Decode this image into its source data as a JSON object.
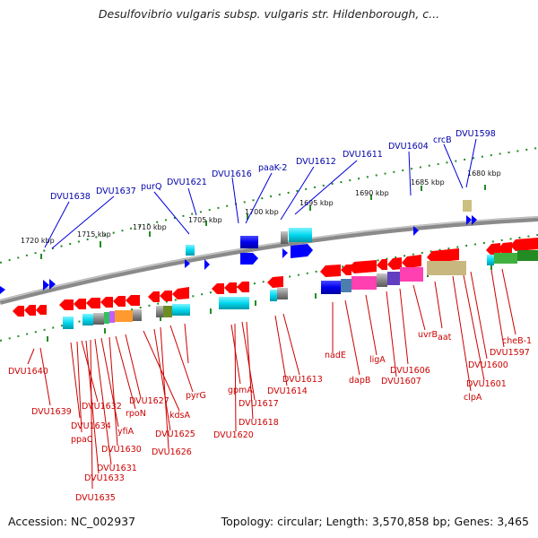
{
  "title": "Desulfovibrio vulgaris subsp. vulgaris str. Hildenborough, c...",
  "footer": {
    "accession": "Accession: NC_002937",
    "topology": "Topology: circular; Length: 3,570,858 bp; Genes: 3,465"
  },
  "colors": {
    "forward_strand_label": "#0000aa",
    "reverse_strand_label": "#cc0000",
    "forward_gene": "#0000ff",
    "reverse_gene": "#ff0000",
    "backbone": "#808080",
    "tick": "#228b22"
  },
  "scale_labels": [
    "1720 kbp",
    "1715 kbp",
    "1710 kbp",
    "1705 kbp",
    "1700 kbp",
    "1695 kbp",
    "1690 kbp",
    "1685 kbp",
    "1680 kbp"
  ],
  "top_labels": [
    "DVU1638",
    "DVU1637",
    "purQ",
    "DVU1621",
    "DVU1616",
    "paaK-2",
    "DVU1612",
    "DVU1611",
    "DVU1604",
    "crcB",
    "DVU1598"
  ],
  "bottom_labels": [
    "DVU1640",
    "DVU1639",
    "DVU1634",
    "ppaC",
    "DVU1632",
    "DVU1633",
    "DVU1635",
    "DVU1631",
    "yfiA",
    "DVU1630",
    "rpoN",
    "DVU1627",
    "kdsA",
    "DVU1625",
    "DVU1626",
    "pyrG",
    "gpmA",
    "DVU1620",
    "DVU1617",
    "DVU1618",
    "DVU1614",
    "DVU1613",
    "nadE",
    "dapB",
    "ligA",
    "DVU1607",
    "DVU1606",
    "uvrB",
    "aat",
    "clpA",
    "DVU1601",
    "DVU1600",
    "DVU1597",
    "cheB-1"
  ]
}
